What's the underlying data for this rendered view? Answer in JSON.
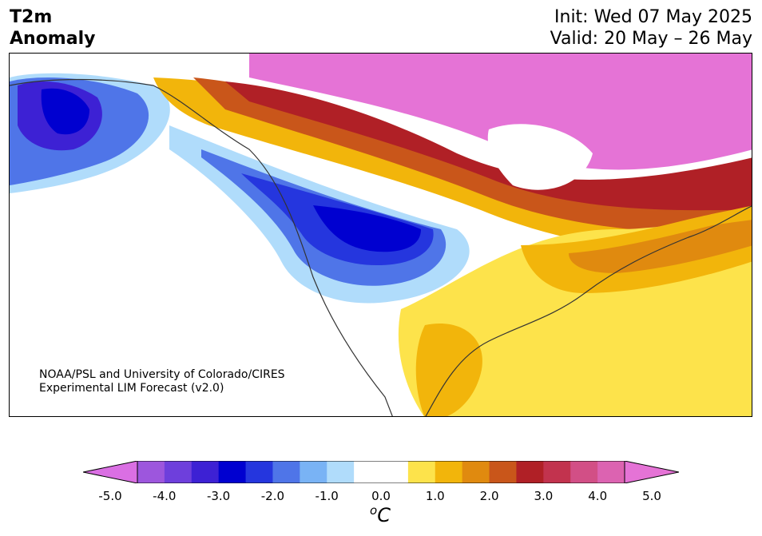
{
  "header": {
    "title_line1": "T2m",
    "title_line2": "Anomaly",
    "init": "Init: Wed 07 May 2025",
    "valid": "Valid: 20 May – 26 May"
  },
  "map": {
    "credit_line1": "NOAA/PSL and University of Colorado/CIRES",
    "credit_line2": "Experimental LIM Forecast (v2.0)",
    "colors": {
      "land_outline": "#333333",
      "neutral": "#ffffff"
    }
  },
  "colorbar": {
    "ticks": [
      "-5.0",
      "-4.0",
      "-3.0",
      "-2.0",
      "-1.0",
      "0.0",
      "1.0",
      "2.0",
      "3.0",
      "4.0",
      "5.0"
    ],
    "unit": "C",
    "unit_superscript": "o",
    "colors": [
      "#da6fe3",
      "#9d56dd",
      "#6e3fdc",
      "#3d21d4",
      "#0000d0",
      "#2536de",
      "#4f75e8",
      "#79b3f5",
      "#b0dcfb",
      "#ffffff",
      "#ffffff",
      "#fde34b",
      "#f2b50b",
      "#e08a0f",
      "#c9561a",
      "#b02026",
      "#c2334e",
      "#d24f86",
      "#dc63b1",
      "#e573d6"
    ]
  }
}
